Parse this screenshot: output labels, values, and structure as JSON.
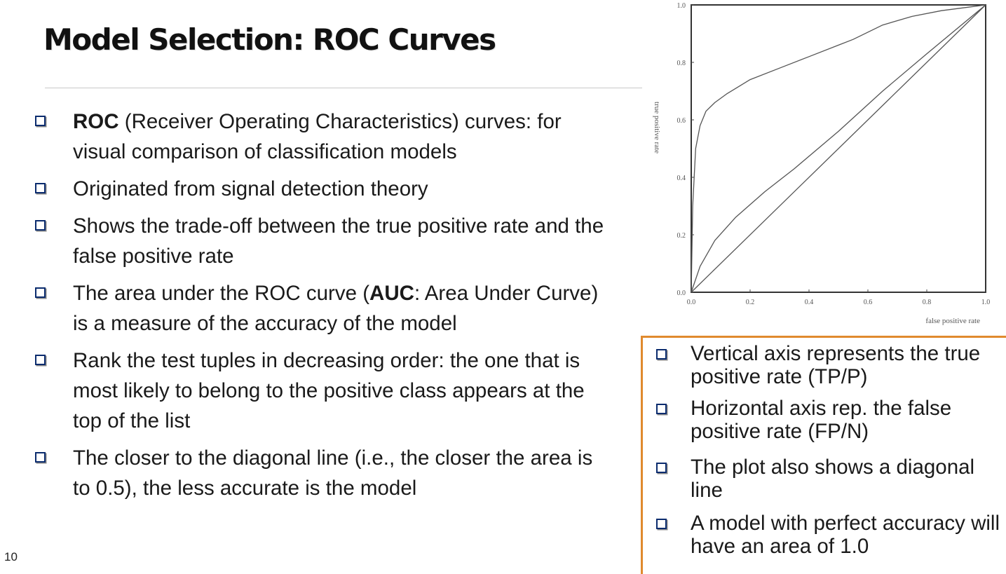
{
  "slide": {
    "title": "Model Selection: ROC Curves",
    "page_number": "10"
  },
  "bullets": [
    {
      "bold": "ROC",
      "text": " (Receiver Operating Characteristics) curves: for visual comparison of classification models"
    },
    {
      "pre": "Originated from signal detection theory"
    },
    {
      "pre": "Shows the trade-off between the true positive rate and the false positive rate"
    },
    {
      "pre": "The area under the ROC curve (",
      "bold": "AUC",
      "text": ": Area Under Curve) is a measure of the accuracy of the model"
    },
    {
      "pre": "Rank the test tuples in decreasing order: the one that is most likely to belong to the positive class appears at the top of the list"
    },
    {
      "pre": "The closer to the diagonal line (i.e., the closer the area is to 0.5), the less accurate is the model"
    }
  ],
  "side_box": {
    "items": [
      "Vertical axis represents the true positive rate (TP/P)",
      "Horizontal axis rep. the false positive rate (FP/N)",
      "The plot also shows a diagonal line",
      "A model with perfect accuracy will have an area of 1.0"
    ],
    "border_color": "#e08a2e"
  },
  "colors": {
    "bullet_box": "#0b2c6e",
    "curve": "#555555"
  },
  "chart_data": {
    "type": "line",
    "xlabel": "false positive rate",
    "ylabel": "true positive rate",
    "xlim": [
      0.0,
      1.0
    ],
    "ylim": [
      0.0,
      1.0
    ],
    "xticks": [
      "0.0",
      "0.2",
      "0.4",
      "0.6",
      "0.8",
      "1.0"
    ],
    "yticks": [
      "0.0",
      "0.2",
      "0.4",
      "0.6",
      "0.8",
      "1.0"
    ],
    "grid": false,
    "series": [
      {
        "x": [
          0,
          0.005,
          0.015,
          0.03,
          0.05,
          0.08,
          0.12,
          0.2,
          0.3,
          0.4,
          0.5,
          0.55,
          0.65,
          0.75,
          0.85,
          1.0
        ],
        "y": [
          0,
          0.3,
          0.5,
          0.58,
          0.63,
          0.66,
          0.69,
          0.74,
          0.78,
          0.82,
          0.86,
          0.88,
          0.93,
          0.96,
          0.98,
          1.0
        ]
      },
      {
        "x": [
          0,
          0.03,
          0.08,
          0.15,
          0.25,
          0.35,
          0.5,
          0.65,
          0.8,
          1.0
        ],
        "y": [
          0,
          0.09,
          0.18,
          0.26,
          0.35,
          0.43,
          0.56,
          0.7,
          0.83,
          1.0
        ]
      },
      {
        "x": [
          0,
          1.0
        ],
        "y": [
          0,
          1.0
        ]
      }
    ]
  }
}
